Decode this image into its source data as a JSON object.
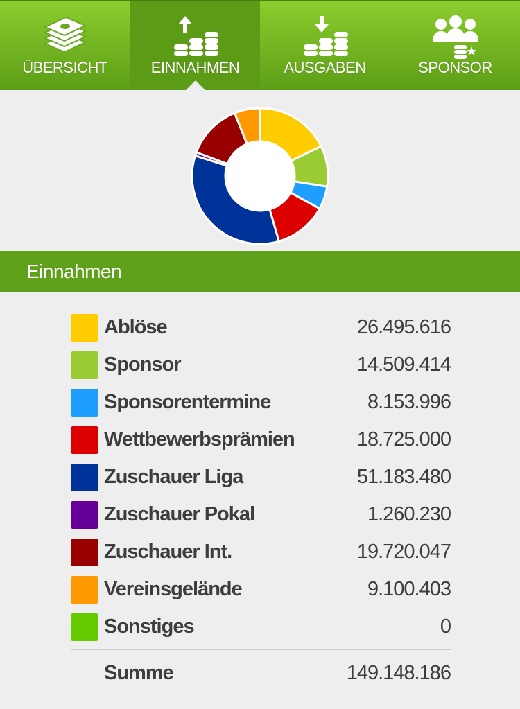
{
  "tabs": [
    {
      "label": "ÜBERSICHT",
      "icon": "money-stack-icon",
      "active": false
    },
    {
      "label": "EINNAHMEN",
      "icon": "income-coins-icon",
      "active": true
    },
    {
      "label": "AUSGABEN",
      "icon": "expense-coins-icon",
      "active": false
    },
    {
      "label": "SPONSOR",
      "icon": "sponsor-people-icon",
      "active": false
    }
  ],
  "section": {
    "title": "Einnahmen"
  },
  "chart_data": {
    "type": "pie",
    "style": "donut",
    "categories": [
      "Ablöse",
      "Sponsor",
      "Sponsorentermine",
      "Wettbewerbsprämien",
      "Zuschauer Liga",
      "Zuschauer Pokal",
      "Zuschauer Int.",
      "Vereinsgelände",
      "Sonstiges"
    ],
    "values": [
      26495616,
      14509414,
      8153996,
      18725000,
      51183480,
      1260230,
      19720047,
      9100403,
      0
    ],
    "colors": [
      "#ffcc00",
      "#99cc33",
      "#1e9fff",
      "#dd0000",
      "#003399",
      "#660099",
      "#990000",
      "#ff9900",
      "#66cc00"
    ]
  },
  "items": [
    {
      "label": "Ablöse",
      "value": "26.495.616",
      "color": "#ffcc00"
    },
    {
      "label": "Sponsor",
      "value": "14.509.414",
      "color": "#99cc33"
    },
    {
      "label": "Sponsorentermine",
      "value": "8.153.996",
      "color": "#1e9fff"
    },
    {
      "label": "Wettbewerbsprämien",
      "value": "18.725.000",
      "color": "#dd0000"
    },
    {
      "label": "Zuschauer Liga",
      "value": "51.183.480",
      "color": "#003399"
    },
    {
      "label": "Zuschauer Pokal",
      "value": "1.260.230",
      "color": "#660099"
    },
    {
      "label": "Zuschauer Int.",
      "value": "19.720.047",
      "color": "#990000"
    },
    {
      "label": "Vereinsgelände",
      "value": "9.100.403",
      "color": "#ff9900"
    },
    {
      "label": "Sonstiges",
      "value": "0",
      "color": "#66cc00"
    }
  ],
  "total": {
    "label": "Summe",
    "value": "149.148.186"
  }
}
